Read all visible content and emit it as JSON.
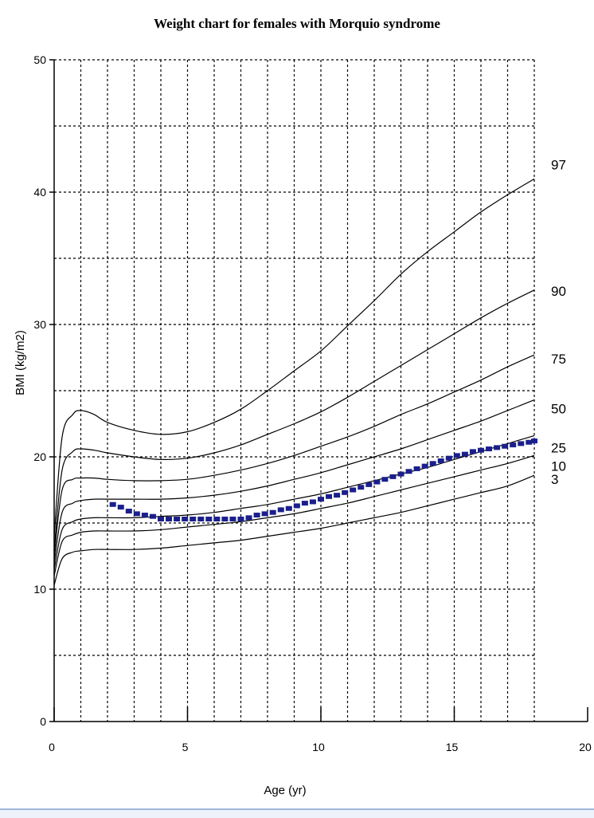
{
  "chart_data": {
    "type": "line",
    "title": "Weight chart for females with Morquio syndrome",
    "xlabel": "Age (yr)",
    "ylabel": "BMI  (kg/m2)",
    "xlim": [
      0,
      20
    ],
    "ylim": [
      0,
      50
    ],
    "x_ticks": [
      0,
      5,
      10,
      15,
      20
    ],
    "y_ticks": [
      0,
      10,
      20,
      30,
      40,
      50
    ],
    "grid": true,
    "grid_style": "dotted",
    "series": [
      {
        "name": "97",
        "x": [
          0,
          0.3,
          0.7,
          1,
          1.5,
          2,
          3,
          4,
          5,
          6,
          7,
          8,
          9,
          10,
          11,
          12,
          13,
          14,
          15,
          16,
          17,
          18
        ],
        "y": [
          14,
          21.5,
          23.2,
          23.5,
          23.2,
          22.6,
          22,
          21.7,
          21.9,
          22.6,
          23.6,
          25,
          26.5,
          28,
          29.9,
          31.8,
          33.8,
          35.5,
          37,
          38.5,
          39.8,
          41
        ]
      },
      {
        "name": "90",
        "x": [
          0,
          0.3,
          0.7,
          1,
          1.5,
          2,
          3,
          4,
          5,
          6,
          7,
          8,
          9,
          10,
          11,
          12,
          13,
          14,
          15,
          16,
          17,
          18
        ],
        "y": [
          13,
          19,
          20.4,
          20.6,
          20.5,
          20.3,
          20,
          19.8,
          19.9,
          20.3,
          20.9,
          21.7,
          22.5,
          23.4,
          24.5,
          25.7,
          26.9,
          28.1,
          29.3,
          30.5,
          31.6,
          32.6
        ]
      },
      {
        "name": "75",
        "x": [
          0,
          0.3,
          0.7,
          1,
          1.5,
          2,
          3,
          4,
          5,
          6,
          7,
          8,
          9,
          10,
          11,
          12,
          13,
          14,
          15,
          16,
          17,
          18
        ],
        "y": [
          12.5,
          17.5,
          18.3,
          18.4,
          18.4,
          18.3,
          18.2,
          18.2,
          18.3,
          18.6,
          19,
          19.5,
          20.1,
          20.8,
          21.5,
          22.3,
          23.2,
          24,
          24.9,
          25.8,
          26.8,
          27.7
        ]
      },
      {
        "name": "50",
        "x": [
          0,
          0.3,
          0.7,
          1,
          1.5,
          2,
          3,
          4,
          5,
          6,
          7,
          8,
          9,
          10,
          11,
          12,
          13,
          14,
          15,
          16,
          17,
          18
        ],
        "y": [
          12,
          15.8,
          16.5,
          16.7,
          16.8,
          16.8,
          16.8,
          16.8,
          16.9,
          17.1,
          17.4,
          17.8,
          18.3,
          18.8,
          19.4,
          20,
          20.6,
          21.3,
          22,
          22.7,
          23.5,
          24.3
        ]
      },
      {
        "name": "25",
        "x": [
          0,
          0.3,
          0.7,
          1,
          1.5,
          2,
          3,
          4,
          5,
          6,
          7,
          8,
          9,
          10,
          11,
          12,
          13,
          14,
          15,
          16,
          17,
          18
        ],
        "y": [
          11.5,
          14.5,
          15.1,
          15.3,
          15.4,
          15.4,
          15.4,
          15.5,
          15.6,
          15.8,
          16.1,
          16.4,
          16.8,
          17.2,
          17.7,
          18.2,
          18.7,
          19.2,
          19.8,
          20.4,
          21,
          21.6
        ]
      },
      {
        "name": "10",
        "x": [
          0,
          0.3,
          0.7,
          1,
          1.5,
          2,
          3,
          4,
          5,
          6,
          7,
          8,
          9,
          10,
          11,
          12,
          13,
          14,
          15,
          16,
          17,
          18
        ],
        "y": [
          11,
          13.6,
          14.1,
          14.3,
          14.4,
          14.4,
          14.4,
          14.5,
          14.7,
          14.9,
          15.1,
          15.4,
          15.7,
          16.1,
          16.5,
          17,
          17.5,
          18,
          18.5,
          19,
          19.5,
          20.1
        ]
      },
      {
        "name": "3",
        "x": [
          0,
          0.3,
          0.7,
          1,
          1.5,
          2,
          3,
          4,
          5,
          6,
          7,
          8,
          9,
          10,
          11,
          12,
          13,
          14,
          15,
          16,
          17,
          18
        ],
        "y": [
          10.3,
          12.3,
          12.8,
          12.9,
          13,
          13,
          13,
          13.1,
          13.3,
          13.5,
          13.7,
          14,
          14.3,
          14.6,
          15,
          15.4,
          15.8,
          16.3,
          16.8,
          17.3,
          17.8,
          18.6
        ]
      }
    ],
    "patient_points": {
      "color": "#1a1f8c",
      "x": [
        2.2,
        2.5,
        2.8,
        3.1,
        3.4,
        3.7,
        4.0,
        4.3,
        4.6,
        4.9,
        5.2,
        5.5,
        5.8,
        6.1,
        6.4,
        6.7,
        7.0,
        7.3,
        7.6,
        7.9,
        8.2,
        8.5,
        8.8,
        9.1,
        9.4,
        9.7,
        10.0,
        10.3,
        10.6,
        10.9,
        11.2,
        11.5,
        11.8,
        12.1,
        12.4,
        12.7,
        13.0,
        13.3,
        13.6,
        13.9,
        14.2,
        14.5,
        14.8,
        15.1,
        15.4,
        15.7,
        16.0,
        16.3,
        16.6,
        16.9,
        17.2,
        17.5,
        17.8,
        18.0
      ],
      "y": [
        16.4,
        16.2,
        15.9,
        15.7,
        15.6,
        15.5,
        15.3,
        15.3,
        15.3,
        15.3,
        15.3,
        15.3,
        15.3,
        15.3,
        15.3,
        15.3,
        15.3,
        15.4,
        15.6,
        15.7,
        15.8,
        16.0,
        16.1,
        16.3,
        16.5,
        16.6,
        16.8,
        17.0,
        17.1,
        17.3,
        17.5,
        17.7,
        17.9,
        18.1,
        18.3,
        18.5,
        18.7,
        18.9,
        19.1,
        19.3,
        19.5,
        19.7,
        19.9,
        20.1,
        20.2,
        20.4,
        20.5,
        20.6,
        20.7,
        20.8,
        20.9,
        21.0,
        21.1,
        21.2
      ]
    }
  }
}
